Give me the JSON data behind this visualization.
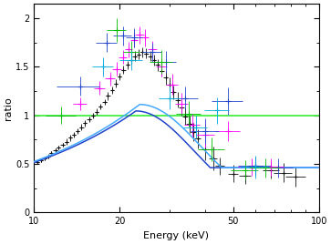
{
  "xlabel": "Energy (keV)",
  "ylabel": "ratio",
  "xlim": [
    10,
    100
  ],
  "ylim": [
    0,
    2.15
  ],
  "yticks": [
    0,
    0.5,
    1,
    1.5,
    2
  ],
  "bg_color": "#ffffff",
  "green_line_y": 1.0,
  "curve_color_dark": "#2244cc",
  "curve_color_light": "#44aaff",
  "black_data": {
    "x": [
      10.3,
      10.6,
      10.9,
      11.2,
      11.5,
      11.9,
      12.2,
      12.6,
      13.0,
      13.4,
      13.8,
      14.2,
      14.7,
      15.1,
      15.6,
      16.1,
      16.6,
      17.1,
      17.7,
      18.2,
      18.8,
      19.4,
      20.0,
      20.6,
      21.3,
      21.9,
      22.6,
      23.3,
      24.0,
      24.8,
      25.6,
      26.4,
      27.2,
      28.1,
      29.0,
      29.9,
      30.9,
      31.9,
      32.9,
      34.0,
      35.1,
      36.3,
      37.6,
      40.0,
      42.5,
      45.0,
      50.0,
      55.0,
      60.0,
      68.0,
      75.0,
      83.0
    ],
    "y": [
      0.52,
      0.54,
      0.56,
      0.58,
      0.61,
      0.64,
      0.67,
      0.7,
      0.73,
      0.77,
      0.8,
      0.84,
      0.88,
      0.92,
      0.96,
      1.0,
      1.04,
      1.09,
      1.14,
      1.2,
      1.26,
      1.33,
      1.4,
      1.47,
      1.52,
      1.57,
      1.61,
      1.63,
      1.65,
      1.64,
      1.61,
      1.57,
      1.52,
      1.46,
      1.39,
      1.32,
      1.24,
      1.16,
      1.08,
      0.99,
      0.91,
      0.83,
      0.76,
      0.65,
      0.56,
      0.48,
      0.4,
      0.38,
      0.48,
      0.44,
      0.41,
      0.37
    ],
    "xerr": [
      0.15,
      0.15,
      0.15,
      0.15,
      0.15,
      0.2,
      0.2,
      0.2,
      0.2,
      0.2,
      0.2,
      0.2,
      0.25,
      0.25,
      0.25,
      0.25,
      0.25,
      0.3,
      0.3,
      0.3,
      0.3,
      0.3,
      0.3,
      0.35,
      0.35,
      0.35,
      0.4,
      0.4,
      0.4,
      0.45,
      0.5,
      0.5,
      0.5,
      0.55,
      0.6,
      0.6,
      0.65,
      0.7,
      0.75,
      0.8,
      0.85,
      0.9,
      1.0,
      1.2,
      1.4,
      1.6,
      2.0,
      2.5,
      3.5,
      4.5,
      5.5,
      6.5
    ],
    "yerr": [
      0.02,
      0.02,
      0.02,
      0.02,
      0.02,
      0.02,
      0.02,
      0.02,
      0.03,
      0.03,
      0.03,
      0.03,
      0.03,
      0.03,
      0.03,
      0.03,
      0.03,
      0.03,
      0.03,
      0.04,
      0.04,
      0.04,
      0.04,
      0.04,
      0.04,
      0.05,
      0.05,
      0.05,
      0.05,
      0.05,
      0.05,
      0.06,
      0.06,
      0.06,
      0.07,
      0.07,
      0.07,
      0.08,
      0.08,
      0.09,
      0.09,
      0.09,
      0.1,
      0.11,
      0.12,
      0.09,
      0.09,
      0.09,
      0.09,
      0.09,
      0.1,
      0.1
    ],
    "color": "#111111"
  },
  "magenta_data": {
    "x": [
      14.5,
      17.0,
      18.5,
      19.5,
      20.5,
      21.5,
      22.5,
      23.5,
      24.5,
      26.0,
      28.0,
      30.5,
      33.0,
      36.0,
      40.0,
      48.0,
      58.0,
      68.0
    ],
    "y": [
      1.12,
      1.28,
      1.38,
      1.48,
      1.6,
      1.68,
      1.78,
      1.83,
      1.8,
      1.68,
      1.5,
      1.32,
      1.12,
      0.9,
      0.8,
      0.84,
      0.47,
      0.47
    ],
    "xerr": [
      0.8,
      0.8,
      0.7,
      0.7,
      0.7,
      0.7,
      0.7,
      0.8,
      0.8,
      1.0,
      1.2,
      1.5,
      1.8,
      2.2,
      3.0,
      5.0,
      6.0,
      7.0
    ],
    "yerr": [
      0.07,
      0.07,
      0.07,
      0.07,
      0.07,
      0.08,
      0.08,
      0.09,
      0.09,
      0.09,
      0.1,
      0.11,
      0.11,
      0.12,
      0.13,
      0.1,
      0.09,
      0.09
    ],
    "color": "#ff00ff"
  },
  "blue_data": {
    "x": [
      14.5,
      18.0,
      20.5,
      22.5,
      26.0,
      29.0,
      34.0,
      40.0,
      48.0,
      60.0,
      72.0
    ],
    "y": [
      1.3,
      1.75,
      1.82,
      1.8,
      1.65,
      1.55,
      1.18,
      0.84,
      1.15,
      0.48,
      0.46
    ],
    "xerr": [
      2.5,
      1.5,
      1.5,
      1.5,
      2.0,
      2.5,
      3.5,
      4.5,
      6.0,
      8.0,
      9.0
    ],
    "yerr": [
      0.1,
      0.1,
      0.1,
      0.1,
      0.1,
      0.11,
      0.12,
      0.13,
      0.14,
      0.1,
      0.1
    ],
    "color": "#2244cc"
  },
  "green_data": {
    "x": [
      12.5,
      19.5,
      22.0,
      28.0,
      35.0,
      42.0,
      55.0,
      65.0
    ],
    "y": [
      1.0,
      1.88,
      1.65,
      1.55,
      1.02,
      0.65,
      0.44,
      0.46
    ],
    "xerr": [
      1.5,
      1.5,
      1.5,
      2.5,
      3.5,
      4.5,
      6.0,
      8.0
    ],
    "yerr": [
      0.09,
      0.12,
      0.12,
      0.12,
      0.13,
      0.12,
      0.1,
      0.1
    ],
    "color": "#00bb00"
  },
  "cyan_data": {
    "x": [
      17.5,
      22.0,
      30.0,
      37.0,
      44.0,
      60.0
    ],
    "y": [
      1.5,
      1.57,
      1.18,
      0.88,
      1.05,
      0.47
    ],
    "xerr": [
      1.5,
      2.0,
      2.5,
      3.5,
      4.5,
      7.0
    ],
    "yerr": [
      0.1,
      0.1,
      0.12,
      0.12,
      0.14,
      0.12
    ],
    "color": "#00aadd"
  }
}
